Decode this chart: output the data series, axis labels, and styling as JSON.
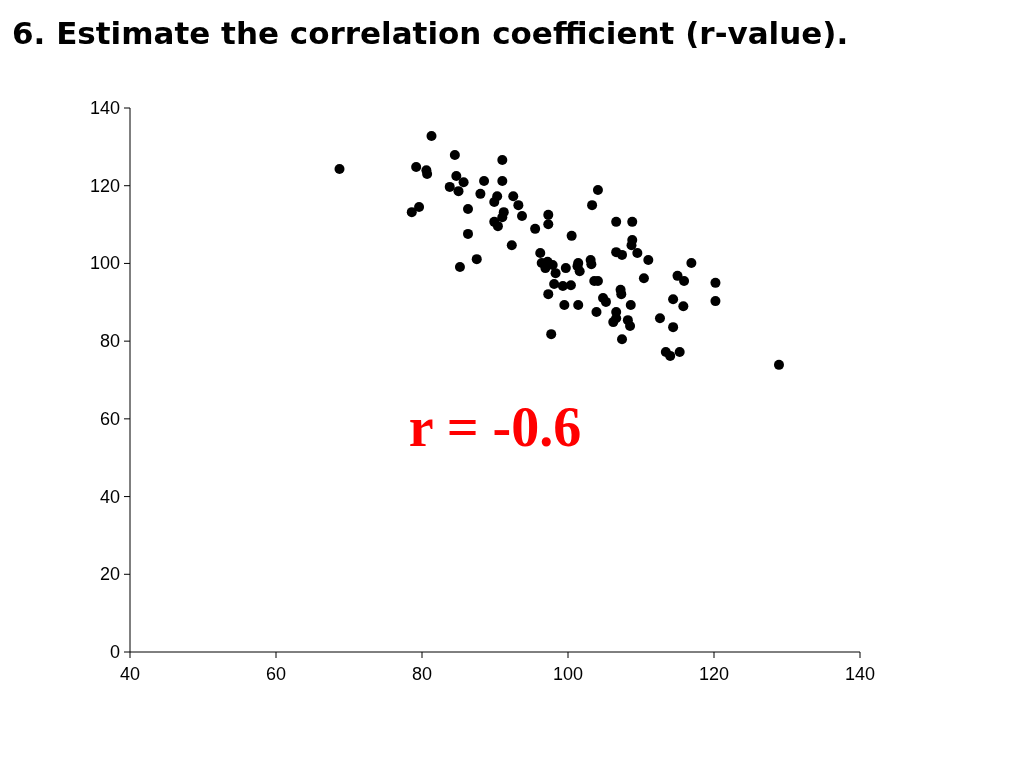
{
  "chart_data": {
    "type": "scatter",
    "title": "6. Estimate the correlation coefficient (r-value).",
    "annotations": [
      "r = -0.6"
    ],
    "xlim": [
      40,
      140
    ],
    "xticks": [
      40,
      60,
      80,
      100,
      120,
      140
    ],
    "ylim": [
      0,
      140
    ],
    "yticks": [
      0,
      20,
      40,
      60,
      80,
      100,
      120,
      140
    ],
    "grid": false,
    "marker": "circle",
    "series": [
      {
        "color": "#000000",
        "x": [
          68.7,
          81.3,
          84.5,
          79.2,
          80.6,
          80.7,
          78.6,
          79.6,
          83.8,
          84.7,
          85.7,
          85,
          86.3,
          86.3,
          85.2,
          87.5,
          88.5,
          88,
          91,
          91,
          90.3,
          89.9,
          92.5,
          93.2,
          91.2,
          91,
          89.9,
          90.4,
          93.7,
          92.3,
          95.5,
          97.3,
          97.3,
          100.5,
          103.3,
          104.1,
          106.6,
          108.8,
          106.6,
          108.8,
          108.7,
          109.5,
          111,
          116.9,
          107.4,
          96.2,
          96.4,
          97.2,
          97.9,
          96.9,
          99.7,
          98.3,
          101.4,
          103.1,
          103.2,
          101.6,
          101.3,
          98.1,
          99.3,
          100.4,
          103.6,
          104.1,
          97.3,
          99.5,
          101.4,
          104.8,
          105.2,
          107.2,
          107.3,
          106.6,
          106.2,
          106.6,
          108.6,
          108.2,
          108.5,
          103.9,
          97.7,
          107.4,
          112.6,
          114.4,
          114.4,
          115,
          115.9,
          115.8,
          110.4,
          120.2,
          120.2,
          113.4,
          114,
          115.3,
          128.9
        ],
        "values": [
          124.3,
          132.8,
          127.9,
          124.8,
          124,
          123,
          113.2,
          114.5,
          119.7,
          122.5,
          120.9,
          118.6,
          114,
          107.6,
          99.1,
          101.1,
          121.2,
          117.9,
          126.6,
          121.2,
          117.3,
          115.8,
          117.3,
          115,
          113.2,
          111.9,
          110.7,
          109.6,
          112.2,
          104.7,
          108.9,
          112.5,
          110.1,
          107.1,
          115,
          118.9,
          110.7,
          110.7,
          102.9,
          106,
          104.7,
          102.7,
          100.9,
          100.1,
          102.2,
          102.7,
          100.1,
          100.4,
          99.6,
          98.8,
          98.8,
          97.5,
          100.1,
          100.9,
          99.8,
          98,
          99.3,
          94.7,
          94.2,
          94.4,
          95.5,
          95.5,
          92.1,
          89.3,
          89.3,
          91.1,
          90.1,
          93.2,
          92.1,
          87.5,
          84.9,
          85.9,
          89.3,
          85.4,
          83.9,
          87.5,
          81.8,
          80.5,
          85.9,
          83.6,
          90.8,
          96.8,
          95.5,
          89,
          96.2,
          95,
          90.3,
          77.2,
          76.2,
          77.2,
          73.9
        ]
      }
    ]
  }
}
